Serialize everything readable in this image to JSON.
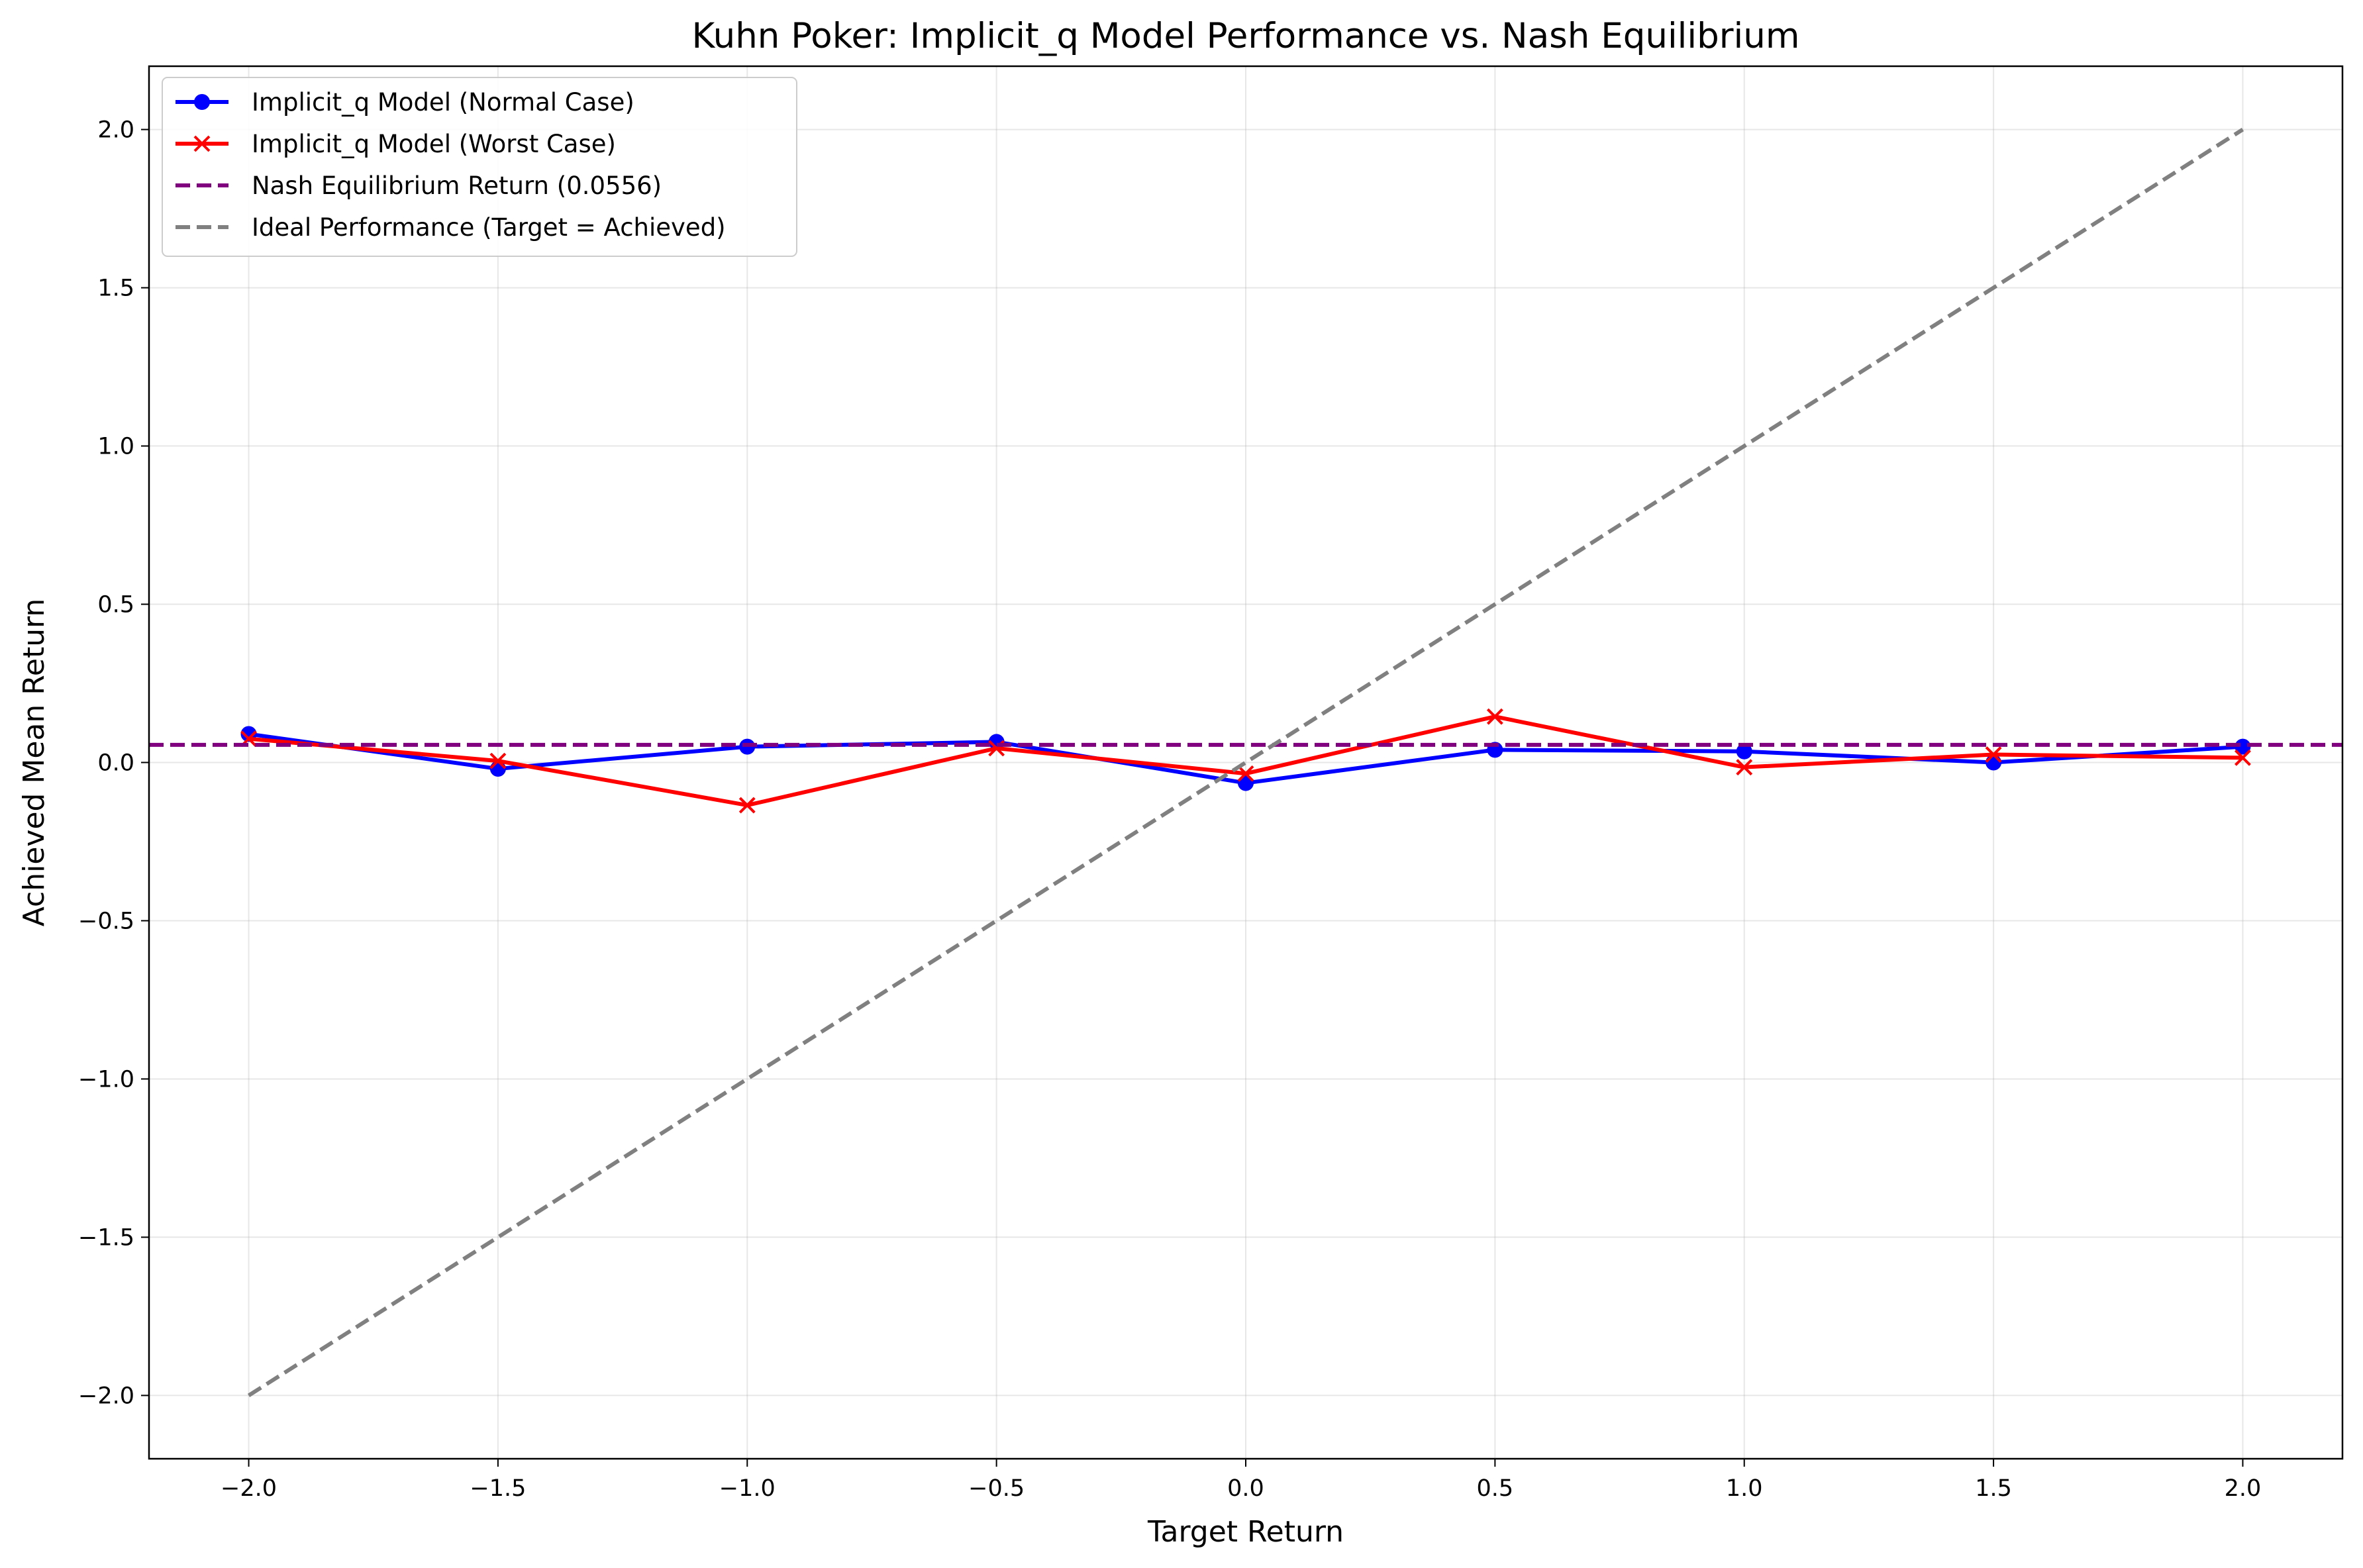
{
  "chart_data": {
    "type": "line",
    "title": "Kuhn Poker: Implicit_q Model Performance vs. Nash Equilibrium",
    "xlabel": "Target Return",
    "ylabel": "Achieved Mean Return",
    "xlim": [
      -2.2,
      2.2
    ],
    "ylim": [
      -2.2,
      2.2
    ],
    "xticks": [
      -2.0,
      -1.5,
      -1.0,
      -0.5,
      0.0,
      0.5,
      1.0,
      1.5,
      2.0
    ],
    "yticks": [
      -2.0,
      -1.5,
      -1.0,
      -0.5,
      0.0,
      0.5,
      1.0,
      1.5,
      2.0
    ],
    "xtick_labels": [
      "−2.0",
      "−1.5",
      "−1.0",
      "−0.5",
      "0.0",
      "0.5",
      "1.0",
      "1.5",
      "2.0"
    ],
    "ytick_labels": [
      "−2.0",
      "−1.5",
      "−1.0",
      "−0.5",
      "0.0",
      "0.5",
      "1.0",
      "1.5",
      "2.0"
    ],
    "grid": true,
    "legend_position": "top-left",
    "x": [
      -2.0,
      -1.5,
      -1.0,
      -0.5,
      0.0,
      0.5,
      1.0,
      1.5,
      2.0
    ],
    "series": [
      {
        "name": "Implicit_q Model (Normal Case)",
        "color": "#0000ff",
        "marker": "circle",
        "style": "solid",
        "values": [
          0.09,
          -0.02,
          0.05,
          0.065,
          -0.065,
          0.04,
          0.035,
          0.0,
          0.05
        ]
      },
      {
        "name": "Implicit_q Model (Worst Case)",
        "color": "#ff0000",
        "marker": "x",
        "style": "solid",
        "values": [
          0.075,
          0.005,
          -0.135,
          0.045,
          -0.035,
          0.145,
          -0.015,
          0.025,
          0.015
        ]
      },
      {
        "name": "Nash Equilibrium Return (0.0556)",
        "color": "#800080",
        "marker": "none",
        "style": "dashed",
        "kind": "hline",
        "y": 0.0556
      },
      {
        "name": "Ideal Performance (Target = Achieved)",
        "color": "#808080",
        "marker": "none",
        "style": "dashed",
        "points": [
          [
            -2.0,
            -2.0
          ],
          [
            2.0,
            2.0
          ]
        ]
      }
    ]
  }
}
